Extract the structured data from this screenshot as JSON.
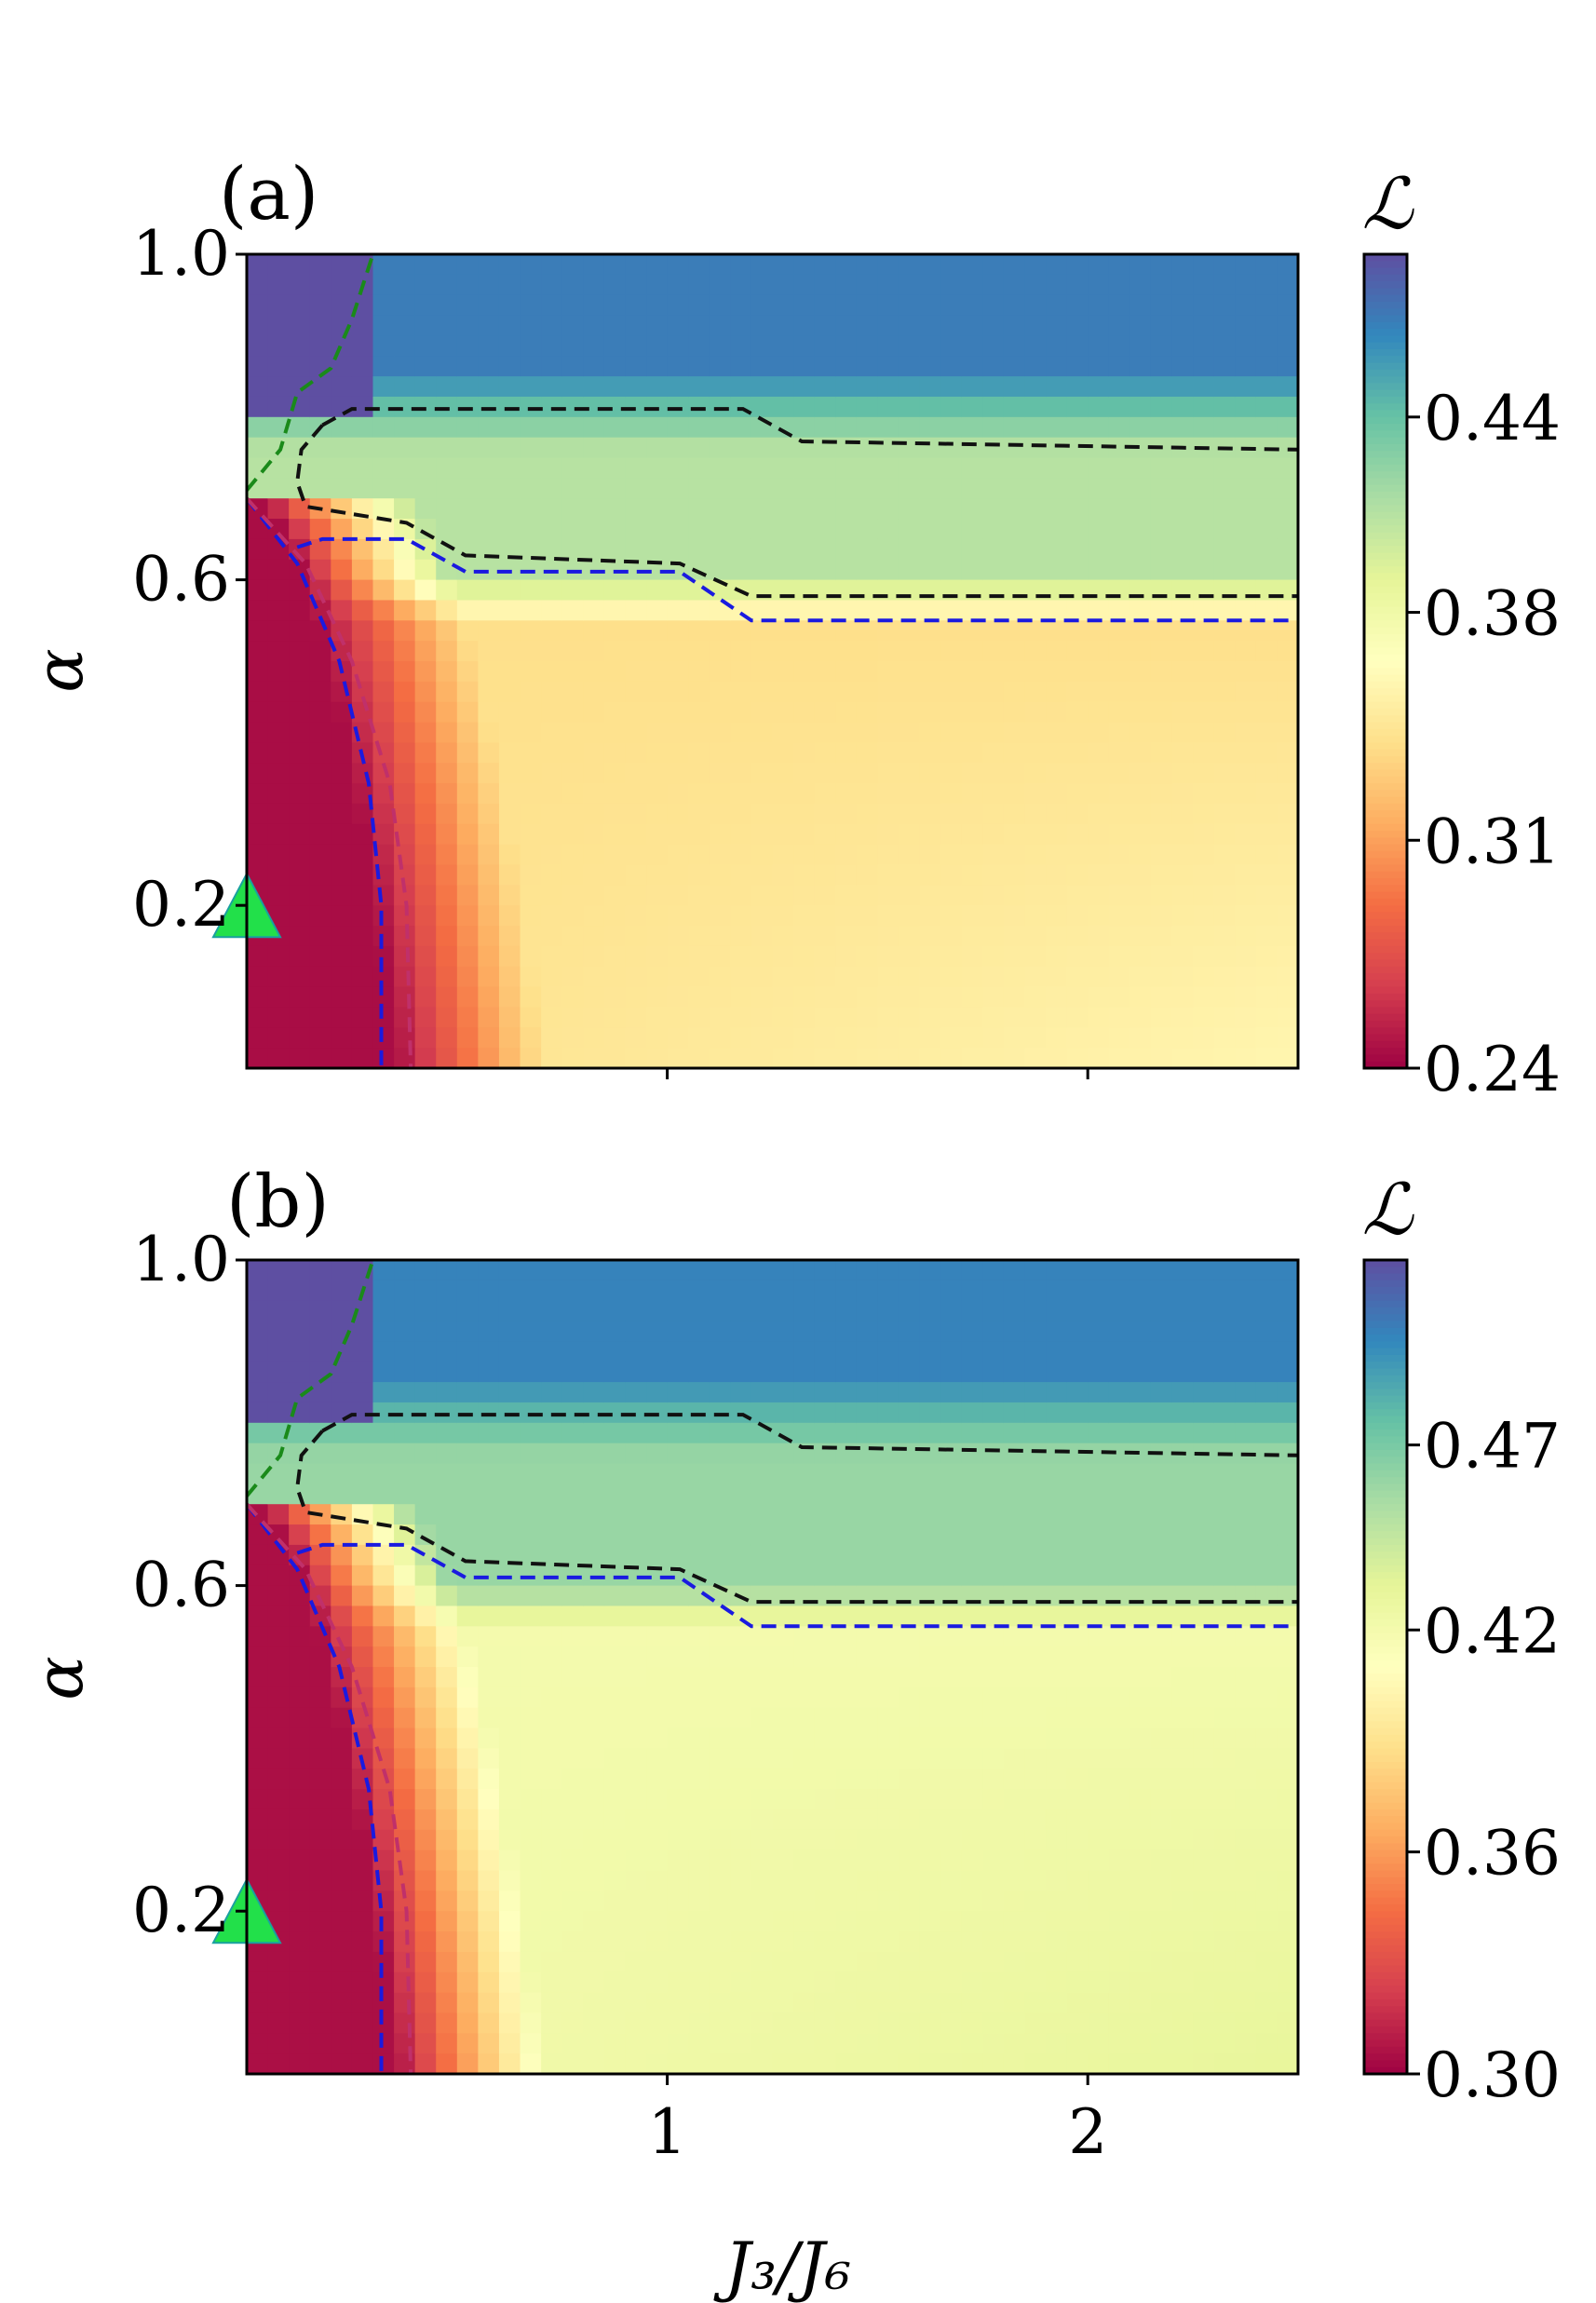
{
  "chart_data": [
    {
      "type": "heatmap",
      "panel_label": "(a)",
      "xlabel": "",
      "ylabel": "α",
      "xlim": [
        0,
        2.5
      ],
      "ylim": [
        0.0,
        1.0
      ],
      "x_ticks": [
        1,
        2
      ],
      "x_tick_labels": [
        "",
        ""
      ],
      "y_ticks": [
        1.0,
        0.6,
        0.2
      ],
      "y_tick_labels": [
        "1.0",
        "0.6",
        "0.2"
      ],
      "colorbar": {
        "label": "ℒ",
        "range": [
          0.24,
          0.49
        ],
        "ticks": [
          0.44,
          0.38,
          0.31,
          0.24
        ],
        "tick_labels": [
          "0.44",
          "0.38",
          "0.31",
          "0.24"
        ],
        "colormap": "Spectral"
      },
      "field_levels": {
        "region_left_low_alpha": 0.245,
        "region_lower_right": 0.34,
        "region_middle_band": 0.41,
        "region_top": 0.47,
        "region_top_left_corner": 0.49
      },
      "marker": {
        "shape": "triangle",
        "x": 0,
        "y": 0.2,
        "color": "#22e04a"
      },
      "boundaries": [
        {
          "color": "#1a8a1a",
          "points": [
            [
              0.0,
              0.71
            ],
            [
              0.08,
              0.76
            ],
            [
              0.12,
              0.83
            ],
            [
              0.2,
              0.86
            ],
            [
              0.25,
              0.92
            ],
            [
              0.3,
              1.0
            ]
          ]
        },
        {
          "color": "#111111",
          "points": [
            [
              0.18,
              0.79
            ],
            [
              0.13,
              0.76
            ],
            [
              0.12,
              0.72
            ],
            [
              0.14,
              0.69
            ],
            [
              0.38,
              0.67
            ],
            [
              0.52,
              0.63
            ],
            [
              1.03,
              0.62
            ],
            [
              1.2,
              0.58
            ],
            [
              2.5,
              0.58
            ]
          ]
        },
        {
          "color": "#111111",
          "points": [
            [
              0.18,
              0.79
            ],
            [
              0.25,
              0.81
            ],
            [
              1.18,
              0.81
            ],
            [
              1.32,
              0.77
            ],
            [
              2.5,
              0.76
            ]
          ]
        },
        {
          "color": "#1a1ae0",
          "points": [
            [
              0.0,
              0.7
            ],
            [
              0.12,
              0.62
            ],
            [
              0.22,
              0.5
            ],
            [
              0.29,
              0.35
            ],
            [
              0.32,
              0.2
            ],
            [
              0.32,
              0.0
            ]
          ]
        },
        {
          "color": "#1a1ae0",
          "points": [
            [
              0.12,
              0.64
            ],
            [
              0.18,
              0.65
            ],
            [
              0.38,
              0.65
            ],
            [
              0.52,
              0.61
            ],
            [
              1.03,
              0.61
            ],
            [
              1.2,
              0.55
            ],
            [
              2.5,
              0.55
            ]
          ]
        },
        {
          "color": "#c0306a",
          "points": [
            [
              0.0,
              0.7
            ],
            [
              0.14,
              0.62
            ],
            [
              0.25,
              0.5
            ],
            [
              0.34,
              0.35
            ],
            [
              0.38,
              0.2
            ],
            [
              0.39,
              0.0
            ]
          ]
        }
      ]
    },
    {
      "type": "heatmap",
      "panel_label": "(b)",
      "xlabel": "J₃/J₆",
      "ylabel": "α",
      "xlim": [
        0,
        2.5
      ],
      "ylim": [
        0.0,
        1.0
      ],
      "x_ticks": [
        1,
        2
      ],
      "x_tick_labels": [
        "1",
        "2"
      ],
      "y_ticks": [
        1.0,
        0.6,
        0.2
      ],
      "y_tick_labels": [
        "1.0",
        "0.6",
        "0.2"
      ],
      "colorbar": {
        "label": "ℒ",
        "range": [
          0.3,
          0.52
        ],
        "ticks": [
          0.47,
          0.42,
          0.36,
          0.3
        ],
        "tick_labels": [
          "0.47",
          "0.42",
          "0.36",
          "0.30"
        ],
        "colormap": "Spectral"
      },
      "field_levels": {
        "region_left_low_alpha": 0.305,
        "region_lower_right": 0.42,
        "region_middle_band": 0.46,
        "region_top": 0.5,
        "region_top_left_corner": 0.52
      },
      "marker": {
        "shape": "triangle",
        "x": 0,
        "y": 0.2,
        "color": "#22e04a"
      },
      "boundaries": [
        {
          "color": "#1a8a1a",
          "points": [
            [
              0.0,
              0.71
            ],
            [
              0.08,
              0.76
            ],
            [
              0.12,
              0.83
            ],
            [
              0.2,
              0.86
            ],
            [
              0.25,
              0.92
            ],
            [
              0.3,
              1.0
            ]
          ]
        },
        {
          "color": "#111111",
          "points": [
            [
              0.18,
              0.79
            ],
            [
              0.13,
              0.76
            ],
            [
              0.12,
              0.72
            ],
            [
              0.14,
              0.69
            ],
            [
              0.38,
              0.67
            ],
            [
              0.52,
              0.63
            ],
            [
              1.03,
              0.62
            ],
            [
              1.2,
              0.58
            ],
            [
              2.5,
              0.58
            ]
          ]
        },
        {
          "color": "#111111",
          "points": [
            [
              0.18,
              0.79
            ],
            [
              0.25,
              0.81
            ],
            [
              1.18,
              0.81
            ],
            [
              1.32,
              0.77
            ],
            [
              2.5,
              0.76
            ]
          ]
        },
        {
          "color": "#1a1ae0",
          "points": [
            [
              0.0,
              0.7
            ],
            [
              0.12,
              0.62
            ],
            [
              0.22,
              0.5
            ],
            [
              0.29,
              0.35
            ],
            [
              0.32,
              0.2
            ],
            [
              0.32,
              0.0
            ]
          ]
        },
        {
          "color": "#1a1ae0",
          "points": [
            [
              0.12,
              0.64
            ],
            [
              0.18,
              0.65
            ],
            [
              0.38,
              0.65
            ],
            [
              0.52,
              0.61
            ],
            [
              1.03,
              0.61
            ],
            [
              1.2,
              0.55
            ],
            [
              2.5,
              0.55
            ]
          ]
        },
        {
          "color": "#c0306a",
          "points": [
            [
              0.0,
              0.7
            ],
            [
              0.14,
              0.62
            ],
            [
              0.25,
              0.5
            ],
            [
              0.34,
              0.35
            ],
            [
              0.38,
              0.2
            ],
            [
              0.39,
              0.0
            ]
          ]
        }
      ]
    }
  ]
}
